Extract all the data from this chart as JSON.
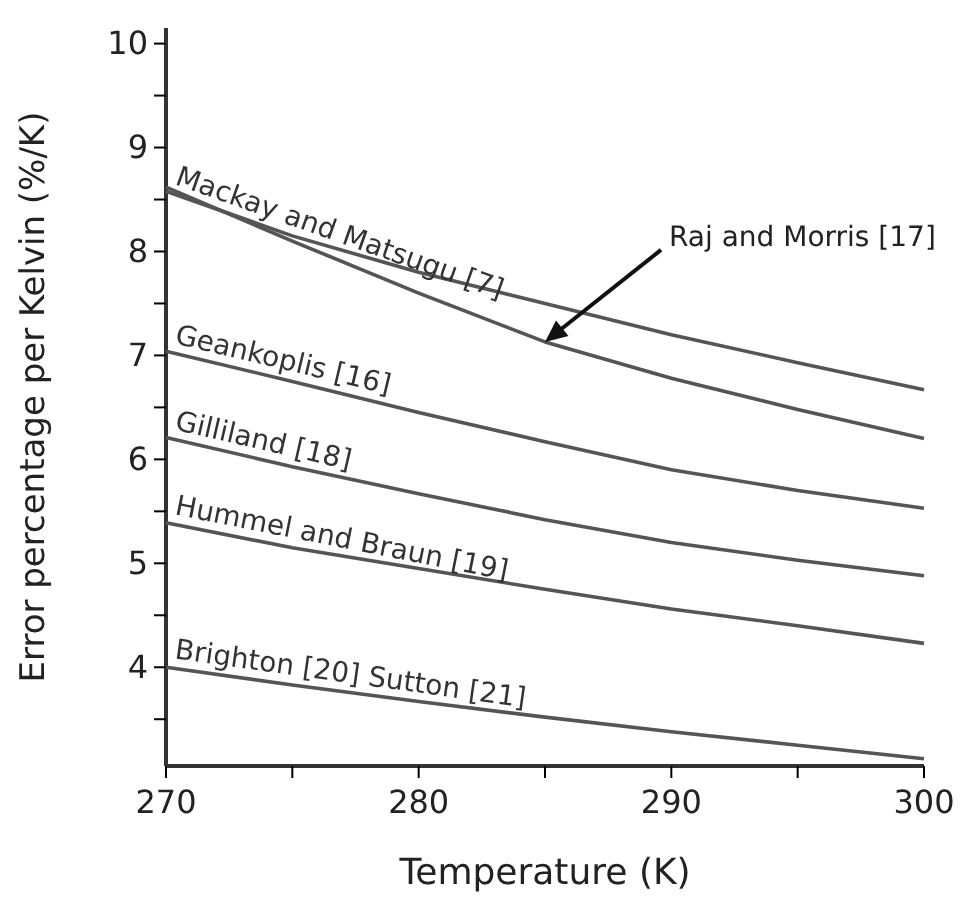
{
  "chart_data": {
    "type": "line",
    "xlabel": "Temperature (K)",
    "ylabel": "Error percentage per Kelvin (%/K)",
    "x": [
      270,
      275,
      280,
      285,
      290,
      295,
      300
    ],
    "xlim": [
      270,
      300
    ],
    "xticks": [
      270,
      {
        "value": 275,
        "label": null
      },
      280,
      {
        "value": 285,
        "label": null
      },
      290,
      {
        "value": 295,
        "label": null
      },
      300
    ],
    "ylim": [
      3.05,
      10.15
    ],
    "yticks": [
      {
        "value": 3.5,
        "label": null
      },
      4,
      {
        "value": 4.5,
        "label": null
      },
      5,
      {
        "value": 5.5,
        "label": null
      },
      6,
      {
        "value": 6.5,
        "label": null
      },
      7,
      {
        "value": 7.5,
        "label": null
      },
      8,
      {
        "value": 8.5,
        "label": null
      },
      9,
      {
        "value": 9.5,
        "label": null
      },
      10
    ],
    "grid": false,
    "marker": "none",
    "line_style": "solid",
    "series": [
      {
        "name": "Mackay and Matsugu [7]",
        "color": "#555555",
        "values": [
          8.58,
          8.15,
          7.8,
          7.5,
          7.2,
          6.93,
          6.67
        ]
      },
      {
        "color": "#555555",
        "values": [
          8.62,
          8.1,
          7.6,
          7.13,
          6.78,
          6.48,
          6.2
        ]
      },
      {
        "name": "Geankoplis [16]",
        "color": "#555555",
        "values": [
          7.04,
          6.75,
          6.45,
          6.17,
          5.9,
          5.7,
          5.53
        ]
      },
      {
        "name": "Gilliland [18]",
        "color": "#555555",
        "values": [
          6.21,
          5.93,
          5.67,
          5.42,
          5.2,
          5.03,
          4.88
        ]
      },
      {
        "name": "Hummel and Braun [19]",
        "color": "#555555",
        "values": [
          5.39,
          5.15,
          4.95,
          4.75,
          4.56,
          4.4,
          4.23
        ]
      },
      {
        "name": "Brighton [20]  Sutton [21]",
        "color": "#555555",
        "values": [
          4.0,
          3.83,
          3.67,
          3.52,
          3.38,
          3.25,
          3.12
        ]
      }
    ],
    "annotations": [
      {
        "text": "Raj and Morris [17]",
        "x": 285,
        "y": 7.13
      }
    ]
  }
}
